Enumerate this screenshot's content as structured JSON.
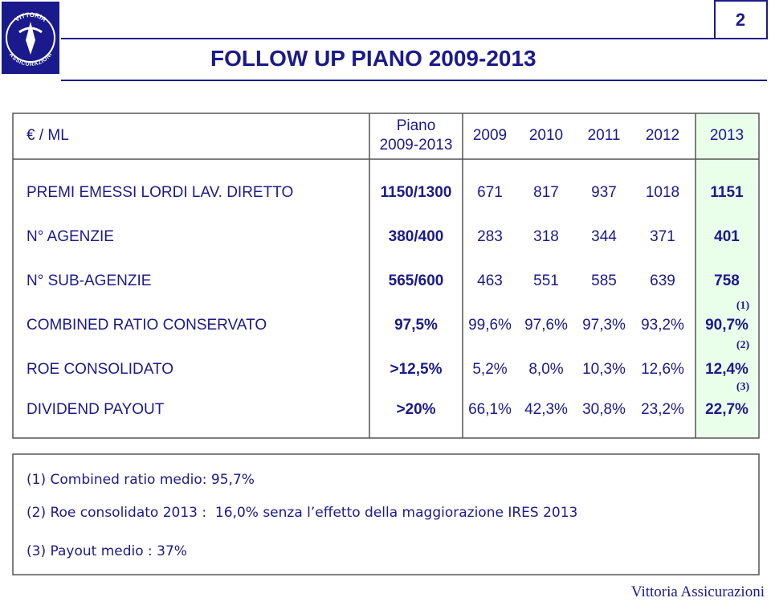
{
  "page_number": "2",
  "header": {
    "title": "FOLLOW UP PIANO 2009-2013"
  },
  "logo": {
    "top": "VITTORIA",
    "bottom": "ASSICURAZIONI"
  },
  "table": {
    "columns": [
      "€ / ML",
      "Piano 2009-2013",
      "2009",
      "2010",
      "2011",
      "2012",
      "2013"
    ],
    "rows": [
      [
        "PREMI EMESSI LORDI LAV. DIRETTO",
        "1150/1300",
        "671",
        "817",
        "937",
        "1018",
        "1151"
      ],
      [
        "N° AGENZIE",
        "380/400",
        "283",
        "318",
        "344",
        "371",
        "401"
      ],
      [
        "N° SUB-AGENZIE",
        "565/600",
        "463",
        "551",
        "585",
        "639",
        "758"
      ],
      [
        "COMBINED RATIO CONSERVATO",
        "97,5%",
        "99,6%",
        "97,6%",
        "97,3%",
        "93,2%",
        "90,7%"
      ],
      [
        "ROE CONSOLIDATO",
        ">12,5%",
        "5,2%",
        "8,0%",
        "10,3%",
        "12,6%",
        "12,4%"
      ],
      [
        "DIVIDEND PAYOUT",
        ">20%",
        "66,1%",
        "42,3%",
        "30,8%",
        "23,2%",
        "22,7%"
      ]
    ],
    "markers": [
      "(1)",
      "(2)",
      "(3)"
    ]
  },
  "footnotes": [
    "(1) Combined ratio medio: 95,7%",
    "(2) Roe consolidato 2013 :  16,0% senza l’effetto della maggiorazione IRES 2013",
    "(3) Payout medio : 37%"
  ],
  "footer": "Vittoria Assicurazioni"
}
